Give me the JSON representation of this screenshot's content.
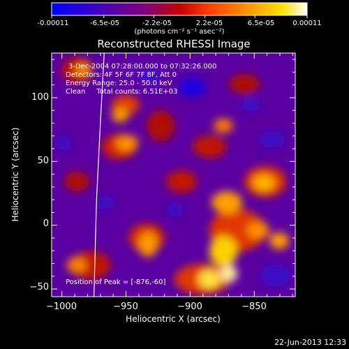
{
  "chart_data": {
    "type": "heatmap",
    "title": "Reconstructed RHESSI Image",
    "xlabel": "Heliocentric X (arcsec)",
    "ylabel": "Heliocentric Y (arcsec)",
    "xlim": [
      -1008,
      -818
    ],
    "ylim": [
      -56,
      135
    ],
    "xticks": [
      -1000,
      -950,
      -900,
      -850
    ],
    "xtick_labels": [
      "−1000",
      "−950",
      "−900",
      "−850"
    ],
    "yticks": [
      -50,
      0,
      50,
      100
    ],
    "ytick_labels": [
      "−50",
      "0",
      "50",
      "100"
    ],
    "colorbar": {
      "range": [
        -0.00011,
        0.00011
      ],
      "tick_values": [
        -0.00011,
        -6.5e-05,
        -2.2e-05,
        2.2e-05,
        6.5e-05,
        0.00011
      ],
      "tick_labels": [
        "-0.00011",
        "-6.5e-05",
        "-2.2e-05",
        "2.2e-05",
        "6.5e-05",
        "0.00011"
      ],
      "units_label": "(photons cm⁻² s⁻¹ asec⁻²)",
      "colormap": [
        "#0000ff",
        "#4000c0",
        "#800080",
        "#c00000",
        "#ff4000",
        "#ff9000",
        "#ffe000",
        "#ffffff"
      ]
    },
    "annotations": [
      "3-Dec-2004 07:28:00.000 to 07:32:26.000",
      "Detectors: 4F 5F 6F 7F 8F, Att 0",
      "Energy Range: 25.0 - 50.0 keV",
      "Clean     Total counts: 6.51E+03",
      "Position of Peak = [-876,-60]"
    ],
    "limb_curve": [
      [
        -967,
        135
      ],
      [
        -970,
        80
      ],
      [
        -973,
        20
      ],
      [
        -975,
        -56
      ]
    ],
    "peak": [
      -876,
      -60
    ],
    "grid": false
  },
  "footer": {
    "timestamp": "22-Jun-2013 12:33"
  }
}
